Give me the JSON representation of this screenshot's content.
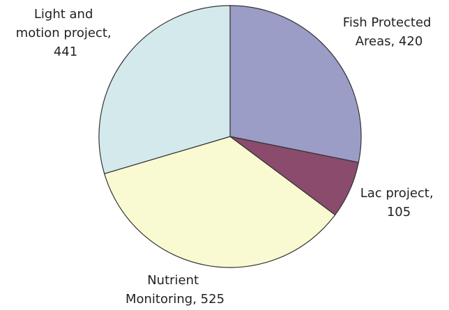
{
  "chart_data": {
    "type": "pie",
    "labels": [
      "Fish Protected Areas, 420",
      "Lac project, 105",
      "Nutrient Monitoring, 525",
      "Light and motion project, 441"
    ],
    "values": [
      420,
      105,
      525,
      441
    ],
    "colors": [
      "#9b9dc6",
      "#8a4b6d",
      "#fafad2",
      "#d4e9ec"
    ]
  }
}
